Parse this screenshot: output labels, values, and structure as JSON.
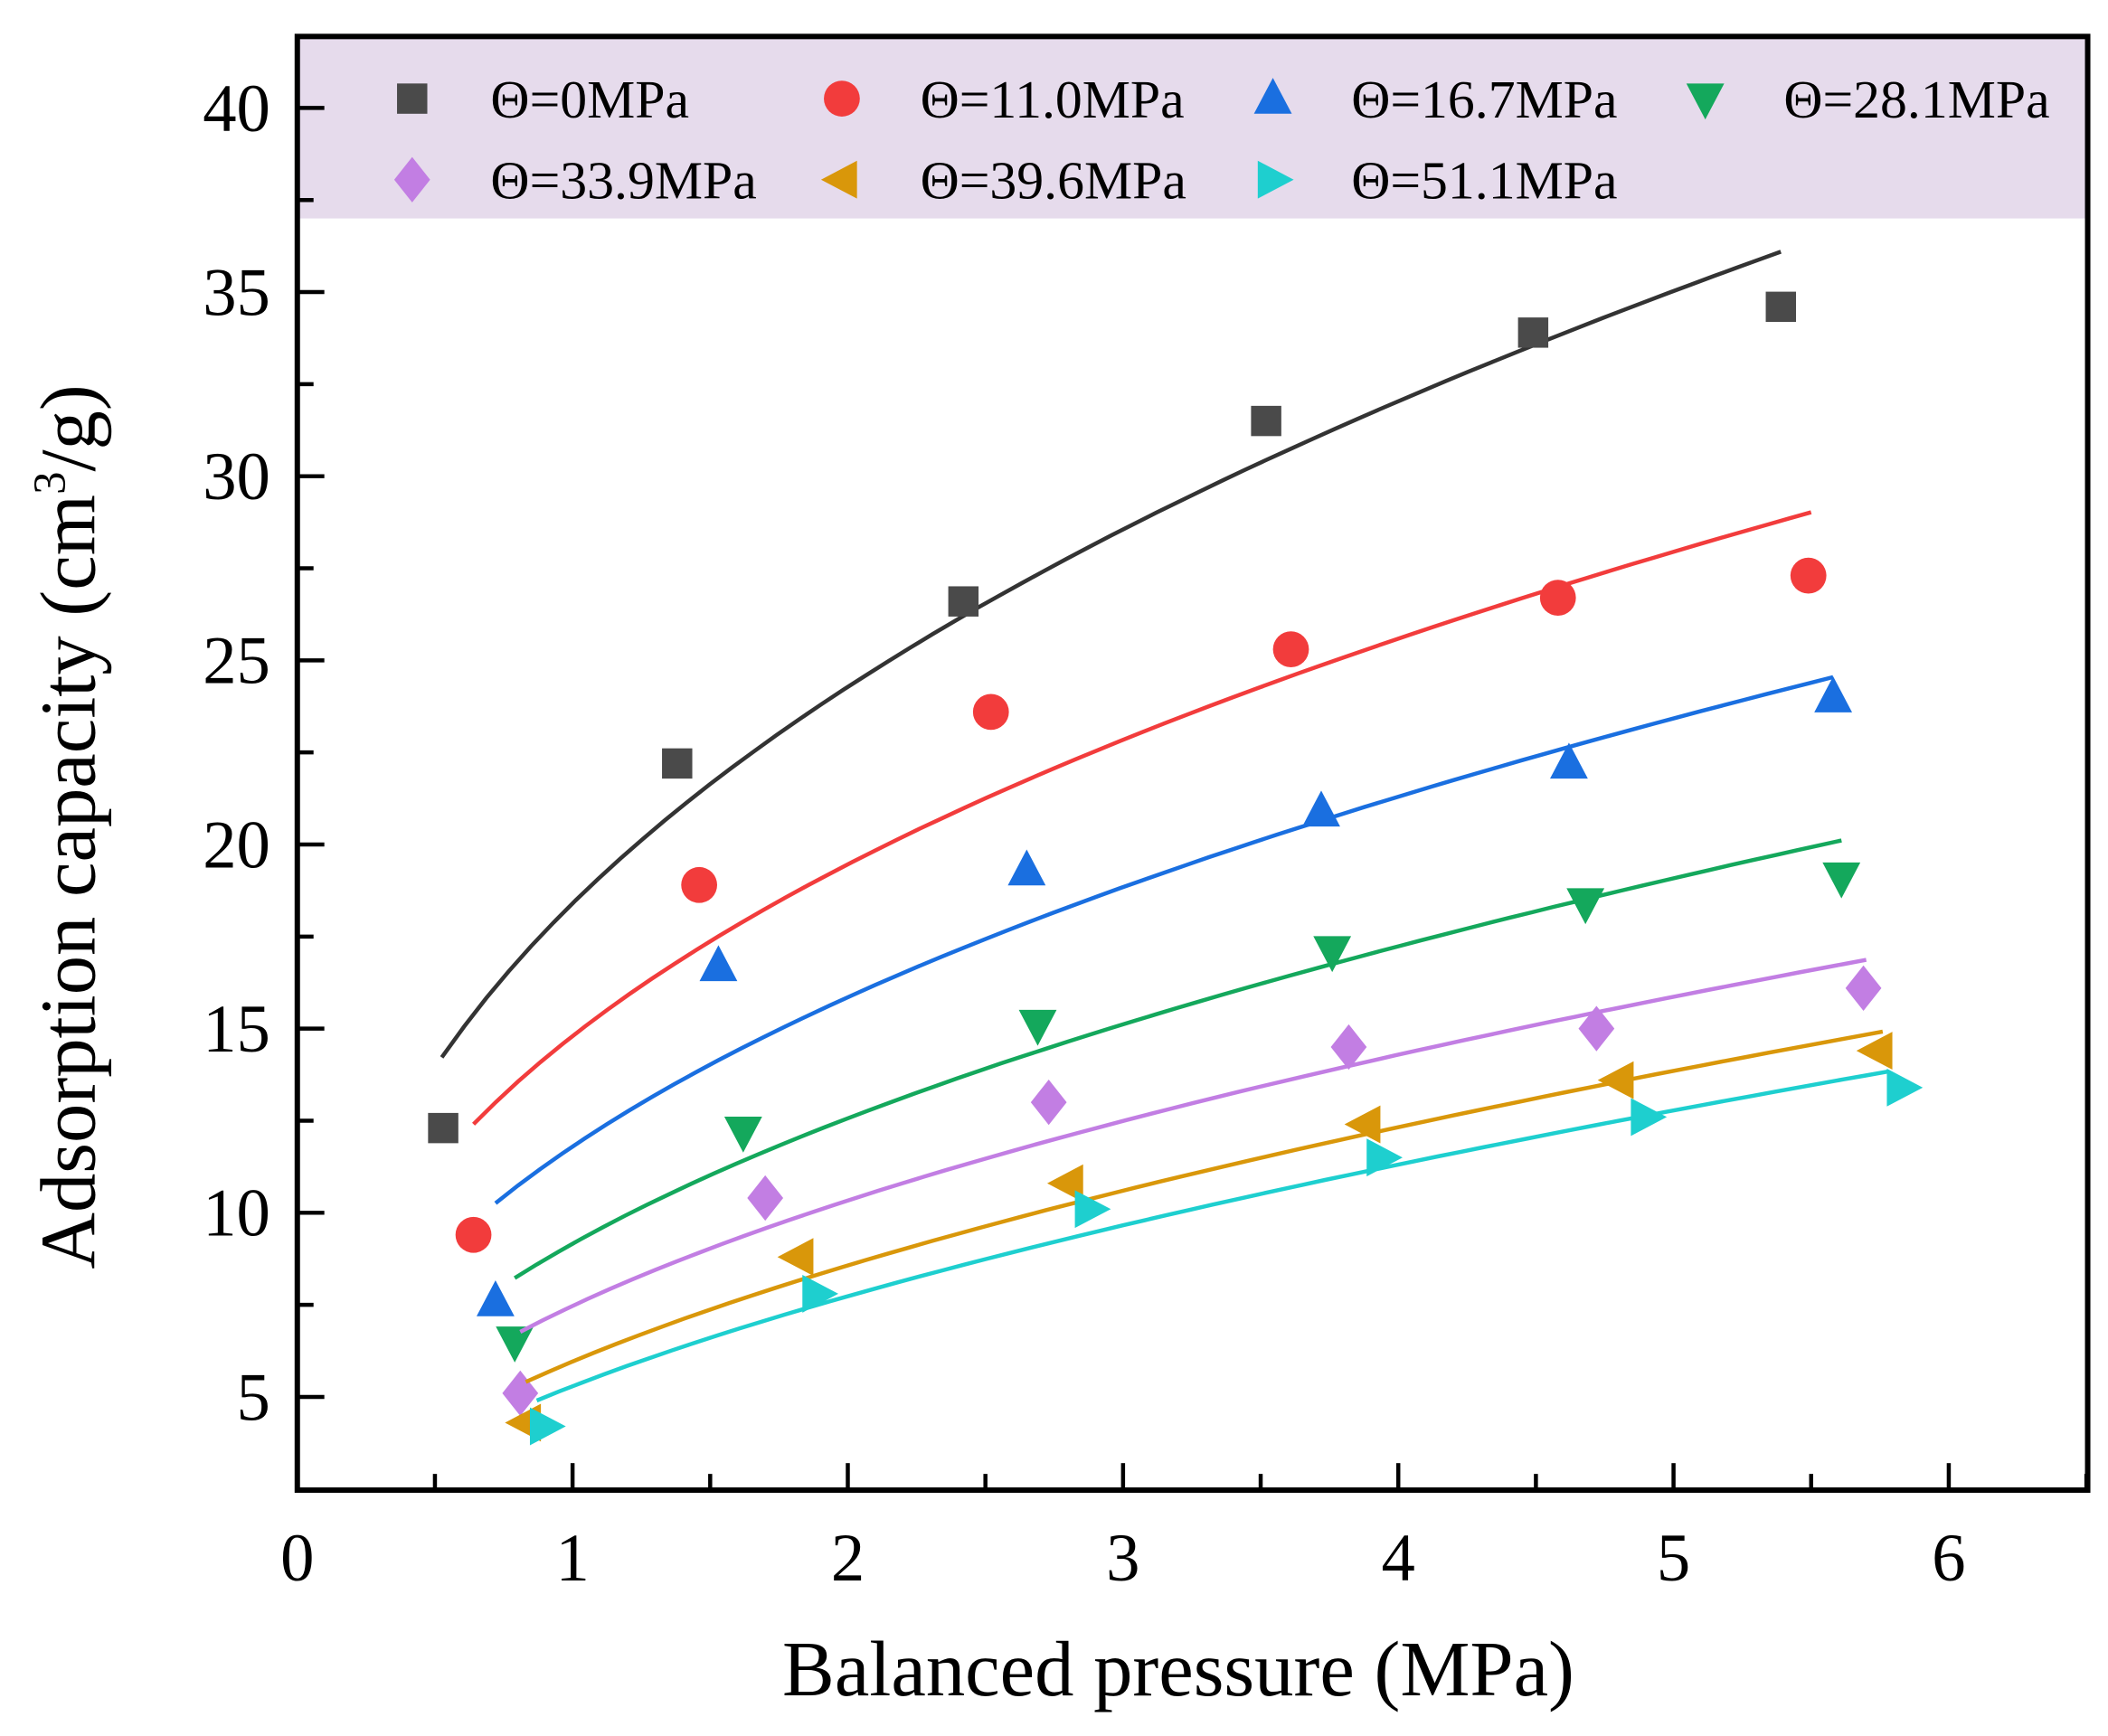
{
  "chart_data": {
    "type": "scatter",
    "title": "",
    "xlabel": "Balanced pressure (MPa)",
    "ylabel_main": "Adsorption capacity (cm",
    "ylabel_sup": "3",
    "ylabel_end": "/g)",
    "xlim": [
      0,
      6.5
    ],
    "ylim": [
      2.47,
      41.94
    ],
    "legend_region_ymin": 37.0,
    "xticks": [
      0,
      1,
      2,
      3,
      4,
      5,
      6
    ],
    "xtick_labels": [
      "0",
      "1",
      "2",
      "3",
      "4",
      "5",
      "6"
    ],
    "yticks": [
      5,
      10,
      15,
      20,
      25,
      30,
      35,
      40
    ],
    "ytick_labels": [
      "5",
      "10",
      "15",
      "20",
      "25",
      "30",
      "35",
      "40"
    ],
    "grid": false,
    "legend_position": "top",
    "legend_bg": "#e6dbec",
    "series": [
      {
        "name": "Θ=0MPa",
        "color": "#4a4a4a",
        "marker": "square",
        "x": [
          0.53,
          1.38,
          2.42,
          3.52,
          4.49,
          5.39
        ],
        "y": [
          12.3,
          22.2,
          26.6,
          31.5,
          33.9,
          34.6
        ],
        "fit": {
          "a": 18.4,
          "b": 0.4,
          "x": [
            0.525,
            5.39
          ],
          "color": "#333333"
        }
      },
      {
        "name": "Θ=11.0MPa",
        "color": "#f23c3c",
        "marker": "circle",
        "x": [
          0.64,
          1.46,
          2.52,
          3.61,
          4.58,
          5.49
        ],
        "y": [
          9.4,
          18.9,
          23.6,
          25.3,
          26.7,
          27.3
        ],
        "fit": {
          "a": 14.8,
          "b": 0.395,
          "x": [
            0.64,
            5.5
          ],
          "color": "#f23c3c"
        }
      },
      {
        "name": "Θ=16.7MPa",
        "color": "#1a6fe0",
        "marker": "triangle-up",
        "x": [
          0.72,
          1.53,
          2.65,
          3.72,
          4.62,
          5.58
        ],
        "y": [
          7.6,
          16.7,
          19.3,
          20.9,
          22.2,
          24.0
        ],
        "fit": {
          "a": 11.8,
          "b": 0.426,
          "x": [
            0.72,
            5.58
          ],
          "color": "#1a6fe0"
        }
      },
      {
        "name": "Θ=28.1MPa",
        "color": "#14a85c",
        "marker": "triangle-down",
        "x": [
          0.79,
          1.62,
          2.69,
          3.76,
          4.68,
          5.61
        ],
        "y": [
          6.5,
          12.2,
          15.1,
          17.1,
          18.4,
          19.1
        ],
        "fit": {
          "a": 9.16,
          "b": 0.456,
          "x": [
            0.79,
            5.61
          ],
          "color": "#14a85c"
        }
      },
      {
        "name": "Θ=33.9MPa",
        "color": "#c27ee3",
        "marker": "diamond",
        "x": [
          0.81,
          1.7,
          2.73,
          3.82,
          4.72,
          5.69
        ],
        "y": [
          5.1,
          10.4,
          13.0,
          14.5,
          15.0,
          16.1
        ],
        "fit": {
          "a": 7.47,
          "b": 0.468,
          "x": [
            0.81,
            5.7
          ],
          "color": "#c27ee3"
        }
      },
      {
        "name": "Θ=39.6MPa",
        "color": "#d9970a",
        "marker": "triangle-left",
        "x": [
          0.83,
          1.82,
          2.8,
          3.88,
          4.8,
          5.74
        ],
        "y": [
          4.3,
          8.8,
          10.8,
          12.4,
          13.6,
          14.4
        ],
        "fit": {
          "a": 5.96,
          "b": 0.524,
          "x": [
            0.83,
            5.76
          ],
          "color": "#d9970a"
        }
      },
      {
        "name": "Θ=51.1MPa",
        "color": "#1ecfcf",
        "marker": "triangle-right",
        "x": [
          0.9,
          1.89,
          2.88,
          3.94,
          4.9,
          5.83
        ],
        "y": [
          4.2,
          7.8,
          10.1,
          11.5,
          12.6,
          13.4
        ],
        "fit": {
          "a": 5.29,
          "b": 0.548,
          "x": [
            0.87,
            5.78
          ],
          "color": "#1ecfcf"
        }
      }
    ]
  }
}
